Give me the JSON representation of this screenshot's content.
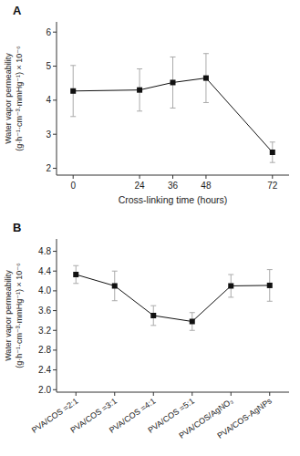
{
  "chart_data": [
    {
      "type": "line",
      "title": "A",
      "x": [
        0,
        24,
        36,
        48,
        72
      ],
      "values": [
        4.27,
        4.3,
        4.52,
        4.65,
        2.47
      ],
      "errors": [
        0.75,
        0.62,
        0.75,
        0.72,
        0.3
      ],
      "xlabel": "Cross-linking time (hours)",
      "ylabel": [
        "Water vapor permeability",
        "(g·h⁻¹·cm⁻³·mmHg⁻¹) × 10⁻⁶"
      ],
      "xlim": [
        -6,
        78
      ],
      "xticks": [
        0,
        24,
        36,
        48,
        72
      ],
      "ylim": [
        1.8,
        6.3
      ],
      "yticks": [
        2,
        3,
        4,
        5,
        6
      ],
      "color": "#111111",
      "marker": "square",
      "line_style": "solid",
      "grid": false
    },
    {
      "type": "line",
      "title": "B",
      "categories": [
        "PVA/COS =2:1",
        "PVA/COS =3:1",
        "PVA/COS =4:1",
        "PVA/COS =5:1",
        "PVA/COS/AgNO₃",
        "PVA/COS-AgNPs"
      ],
      "values": [
        4.33,
        4.1,
        3.5,
        3.38,
        4.1,
        4.11
      ],
      "errors": [
        0.18,
        0.3,
        0.2,
        0.18,
        0.23,
        0.32
      ],
      "ylabel": [
        "Water vapor permeability",
        "(g·h⁻¹·cm⁻³·mmHg⁻¹) × 10⁻⁶"
      ],
      "ylim": [
        1.95,
        5.05
      ],
      "yticks": [
        {
          "value": 2.0,
          "label": "2.0"
        },
        2.4,
        2.8,
        3.2,
        3.6,
        {
          "value": 4.0,
          "label": "4.0"
        },
        4.4,
        4.8
      ],
      "color": "#111111",
      "marker": "square",
      "line_style": "solid",
      "grid": false
    }
  ]
}
